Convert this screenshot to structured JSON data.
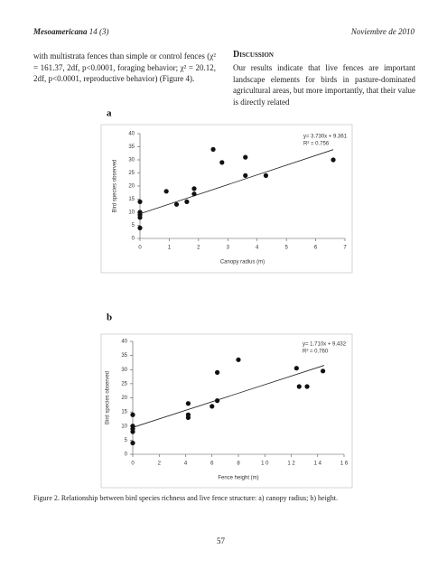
{
  "header": {
    "journal": "Mesoamericana",
    "issue": "14 (3)",
    "date": "Noviembre de 2010"
  },
  "left_text": "with multistrata fences than simple or control fences (χ² = 161.37, 2df, p<0.0001, foraging behavior; χ² = 20.12, 2df, p<0.0001, reproductive behavior) (Figure 4).",
  "discussion": {
    "heading": "Discussion",
    "text": "Our results indicate that live fences are important landscape elements for birds in pasture-dominated agricultural areas, but more importantly, that their value is directly related"
  },
  "chart_data": [
    {
      "type": "scatter",
      "panel": "a",
      "xlabel": "Canopy radius (m)",
      "ylabel": "Bird species observed",
      "x": [
        0,
        0,
        0,
        0,
        0,
        0.9,
        1.25,
        1.6,
        1.85,
        1.85,
        2.5,
        2.8,
        3.6,
        3.6,
        4.3,
        6.6
      ],
      "values": [
        4,
        8,
        9,
        10,
        14,
        18,
        13,
        14,
        19,
        17,
        34,
        29,
        31,
        24,
        24,
        30
      ],
      "color": "#111111",
      "xlim": [
        0,
        7
      ],
      "xticks": [
        0,
        1,
        2,
        3,
        4,
        5,
        6,
        7
      ],
      "ylim": [
        0,
        40
      ],
      "yticks": [
        0,
        5,
        10,
        15,
        20,
        25,
        30,
        35,
        40
      ],
      "trendline": {
        "x": [
          0,
          6.6
        ],
        "values": [
          9.4,
          33.9
        ]
      },
      "equation": "y= 3.730x + 9.361",
      "r2": "R² = 0.756"
    },
    {
      "type": "scatter",
      "panel": "b",
      "xlabel": "Fence height (m)",
      "ylabel": "Bird species observed",
      "x": [
        0,
        0,
        0,
        0,
        0,
        0.42,
        0.42,
        0.42,
        0.6,
        0.64,
        0.64,
        0.8,
        1.24,
        1.26,
        1.32,
        1.44
      ],
      "values": [
        4,
        8,
        9,
        10,
        14,
        13,
        14,
        18,
        17,
        19,
        29,
        33.5,
        30.5,
        24,
        24,
        29.5
      ],
      "color": "#111111",
      "xlim": [
        0,
        1.6
      ],
      "xticks": [
        0,
        {
          "value": 0.2,
          "label": "2"
        },
        {
          "value": 0.4,
          "label": "4"
        },
        {
          "value": 0.6,
          "label": "6"
        },
        {
          "value": 0.8,
          "label": "8"
        },
        {
          "value": 1.0,
          "label": "1 0"
        },
        {
          "value": 1.2,
          "label": "1 2"
        },
        {
          "value": 1.4,
          "label": "1 4"
        },
        {
          "value": 1.6,
          "label": "1 6"
        }
      ],
      "ylim": [
        0,
        40
      ],
      "yticks": [
        0,
        5,
        10,
        15,
        20,
        25,
        30,
        35,
        40
      ],
      "trendline": {
        "x": [
          0,
          1.45
        ],
        "values": [
          9.5,
          31.5
        ]
      },
      "equation": "y= 1.710x + 9.432",
      "r2": "R² = 0.760"
    }
  ],
  "caption": "Figure 2. Relationship between bird species richness and live fence structure: a) canopy radius; b) height.",
  "page_number": "57"
}
